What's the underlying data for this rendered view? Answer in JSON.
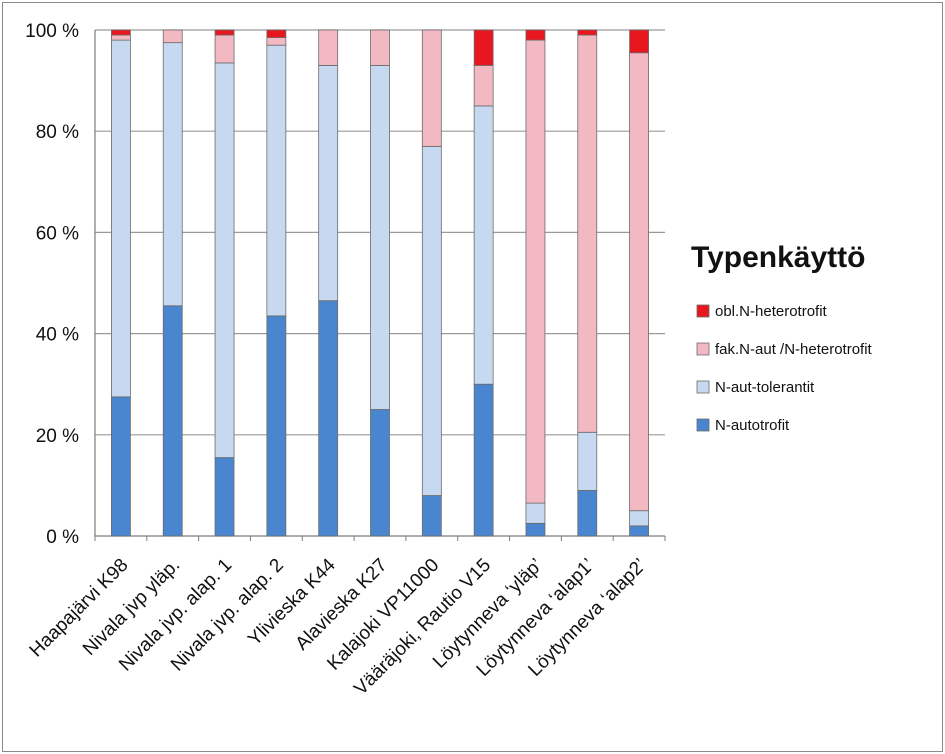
{
  "chart_data": {
    "type": "bar",
    "stacked": true,
    "categories": [
      "Haapajärvi K98",
      "Nivala jvp yläp.",
      "Nivala jvp. alap. 1",
      "Nivala jvp. alap. 2",
      "Ylivieska K44",
      "Alavieska K27",
      "Kalajoki VP11000",
      "Vääräjoki, Rautio V15",
      "Löytynneva ‘yläp’",
      "Löytynneva ‘alap1’",
      "Löytynneva ‘alap2’"
    ],
    "series": [
      {
        "name": "N-autotrofit",
        "color": "#4a86cf",
        "values": [
          27.5,
          45.5,
          15.5,
          43.5,
          46.5,
          25,
          8,
          30,
          2.5,
          9,
          2
        ]
      },
      {
        "name": "N-aut-tolerantit",
        "color": "#c6d9f0",
        "values": [
          70.5,
          52,
          78,
          53.5,
          46.5,
          68,
          69,
          55,
          4,
          11.5,
          3
        ]
      },
      {
        "name": "fak.N-aut /N-heterotrofit",
        "color": "#f3b9c3",
        "values": [
          1,
          2.5,
          5.5,
          1.5,
          7,
          7,
          23,
          8,
          91.5,
          78.5,
          90.5
        ]
      },
      {
        "name": "obl.N-heterotrofit",
        "color": "#e8161f",
        "values": [
          1,
          0,
          1,
          1.5,
          0,
          0,
          0,
          7,
          2,
          1,
          4.5
        ]
      }
    ],
    "yticks": [
      "0 %",
      "20 %",
      "40 %",
      "60 %",
      "80 %",
      "100 %"
    ],
    "ylim": [
      0,
      100
    ],
    "ylabel": "",
    "xlabel": "",
    "title": "",
    "grid": true,
    "legend": {
      "title": "Typenkäyttö",
      "placement": "right",
      "order": [
        "obl.N-heterotrofit",
        "fak.N-aut /N-heterotrofit",
        "N-aut-tolerantit",
        "N-autotrofit"
      ]
    }
  }
}
